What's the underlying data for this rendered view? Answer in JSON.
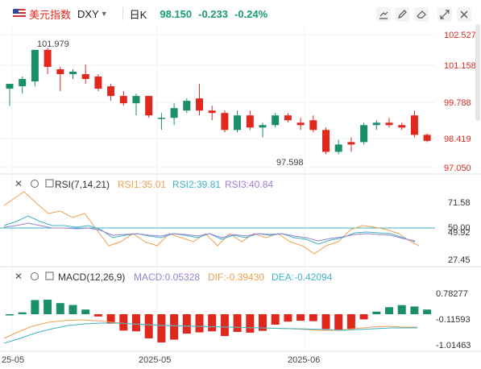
{
  "header": {
    "symbol_name": "美元指数",
    "ticker": "DXY",
    "interval": "日K",
    "last": "98.150",
    "change": "-0.233",
    "change_pct": "-0.24%",
    "icons": [
      "draw-icon",
      "pen-icon",
      "eraser-icon",
      "expand-icon",
      "close-icon"
    ]
  },
  "main": {
    "price_axis": [
      "102.527",
      "101.158",
      "99.788",
      "98.419",
      "97.050"
    ],
    "high_label": "101.979",
    "low_label": "97.598"
  },
  "rsi": {
    "title": "RSI(7,14,21)",
    "rsi1": "RSI1:35.01",
    "rsi2": "RSI2:39.81",
    "rsi3": "RSI3:40.84",
    "axis": [
      "71.58",
      "50.00",
      "49.92",
      "27.45"
    ]
  },
  "macd": {
    "title": "MACD(12,26,9)",
    "macd": "MACD:0.05328",
    "dif": "DIF:-0.39430",
    "dea": "DEA:-0.42094",
    "axis": [
      "0.78277",
      "-0.11593",
      "-1.01463"
    ]
  },
  "xaxis": [
    "25-05",
    "2025-05",
    "2025-06"
  ],
  "colors": {
    "up": "#e0281f",
    "down": "#1a8f6a",
    "rsi1": "#f0a050",
    "rsi2": "#3fb3c8",
    "rsi3": "#9b7fd0",
    "macd_line": "#f0a050",
    "dea_line": "#3fb3c8"
  },
  "chart_data": {
    "type": "candlestick",
    "ylim": [
      97.05,
      102.527
    ],
    "candles": [
      {
        "o": 100.3,
        "h": 100.5,
        "l": 99.6,
        "c": 100.5
      },
      {
        "o": 100.4,
        "h": 100.8,
        "l": 100.1,
        "c": 100.7
      },
      {
        "o": 100.6,
        "h": 101.9,
        "l": 100.4,
        "c": 101.9
      },
      {
        "o": 101.9,
        "h": 101.979,
        "l": 100.9,
        "c": 101.2
      },
      {
        "o": 101.1,
        "h": 101.2,
        "l": 100.2,
        "c": 100.9
      },
      {
        "o": 100.9,
        "h": 101.1,
        "l": 100.7,
        "c": 101.0
      },
      {
        "o": 100.9,
        "h": 101.3,
        "l": 100.5,
        "c": 100.7
      },
      {
        "o": 100.8,
        "h": 100.9,
        "l": 100.2,
        "c": 100.3
      },
      {
        "o": 100.4,
        "h": 100.5,
        "l": 99.8,
        "c": 100.0
      },
      {
        "o": 100.0,
        "h": 100.2,
        "l": 99.6,
        "c": 99.7
      },
      {
        "o": 99.7,
        "h": 100.1,
        "l": 99.2,
        "c": 100.0
      },
      {
        "o": 100.0,
        "h": 100.0,
        "l": 99.1,
        "c": 99.2
      },
      {
        "o": 99.1,
        "h": 99.3,
        "l": 98.6,
        "c": 99.1
      },
      {
        "o": 99.1,
        "h": 99.7,
        "l": 98.8,
        "c": 99.5
      },
      {
        "o": 99.4,
        "h": 99.9,
        "l": 99.3,
        "c": 99.8
      },
      {
        "o": 99.9,
        "h": 100.5,
        "l": 99.2,
        "c": 99.4
      },
      {
        "o": 99.4,
        "h": 99.6,
        "l": 99.0,
        "c": 99.3
      },
      {
        "o": 99.3,
        "h": 99.4,
        "l": 98.5,
        "c": 98.6
      },
      {
        "o": 98.6,
        "h": 99.4,
        "l": 98.5,
        "c": 99.2
      },
      {
        "o": 99.2,
        "h": 99.4,
        "l": 98.6,
        "c": 98.7
      },
      {
        "o": 98.7,
        "h": 98.9,
        "l": 98.3,
        "c": 98.8
      },
      {
        "o": 98.8,
        "h": 99.3,
        "l": 98.7,
        "c": 99.2
      },
      {
        "o": 99.2,
        "h": 99.3,
        "l": 98.9,
        "c": 99.0
      },
      {
        "o": 98.9,
        "h": 99.1,
        "l": 98.6,
        "c": 98.8
      },
      {
        "o": 99.0,
        "h": 99.2,
        "l": 98.5,
        "c": 98.6
      },
      {
        "o": 98.6,
        "h": 98.7,
        "l": 97.6,
        "c": 97.7
      },
      {
        "o": 97.7,
        "h": 98.2,
        "l": 97.598,
        "c": 98.0
      },
      {
        "o": 98.1,
        "h": 98.3,
        "l": 97.7,
        "c": 98.0
      },
      {
        "o": 98.1,
        "h": 98.9,
        "l": 98.0,
        "c": 98.8
      },
      {
        "o": 98.8,
        "h": 99.0,
        "l": 98.6,
        "c": 98.9
      },
      {
        "o": 98.9,
        "h": 99.1,
        "l": 98.7,
        "c": 98.8
      },
      {
        "o": 98.8,
        "h": 98.9,
        "l": 98.6,
        "c": 98.7
      },
      {
        "o": 99.2,
        "h": 99.4,
        "l": 98.3,
        "c": 98.4
      },
      {
        "o": 98.4,
        "h": 98.45,
        "l": 98.1,
        "c": 98.15
      }
    ]
  }
}
